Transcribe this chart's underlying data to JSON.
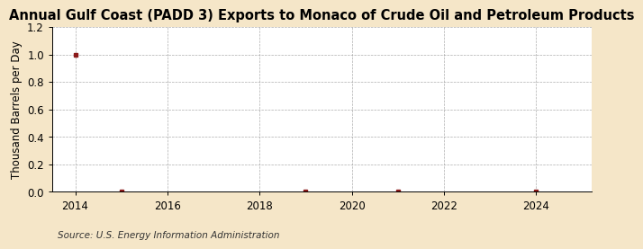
{
  "title": "Annual Gulf Coast (PADD 3) Exports to Monaco of Crude Oil and Petroleum Products",
  "ylabel": "Thousand Barrels per Day",
  "source": "Source: U.S. Energy Information Administration",
  "background_color": "#f5e6c8",
  "plot_bg_color": "#ffffff",
  "data_points": {
    "x": [
      2014,
      2015,
      2019,
      2021,
      2024
    ],
    "y": [
      1.0,
      0.0,
      0.0,
      0.0,
      0.0
    ]
  },
  "xlim": [
    2013.5,
    2025.2
  ],
  "ylim": [
    0.0,
    1.2
  ],
  "yticks": [
    0.0,
    0.2,
    0.4,
    0.6,
    0.8,
    1.0,
    1.2
  ],
  "xticks": [
    2014,
    2016,
    2018,
    2020,
    2022,
    2024
  ],
  "marker_color": "#8b1a1a",
  "grid_color": "#999999",
  "title_fontsize": 10.5,
  "label_fontsize": 8.5,
  "tick_fontsize": 8.5,
  "source_fontsize": 7.5
}
